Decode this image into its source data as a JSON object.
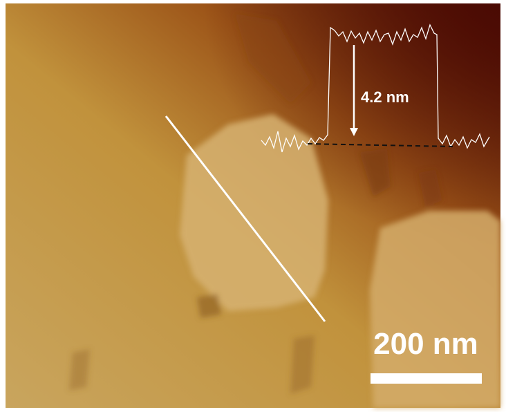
{
  "annotations": {
    "height_label": "4.2 nm",
    "scale_bar_label": "200 nm"
  }
}
